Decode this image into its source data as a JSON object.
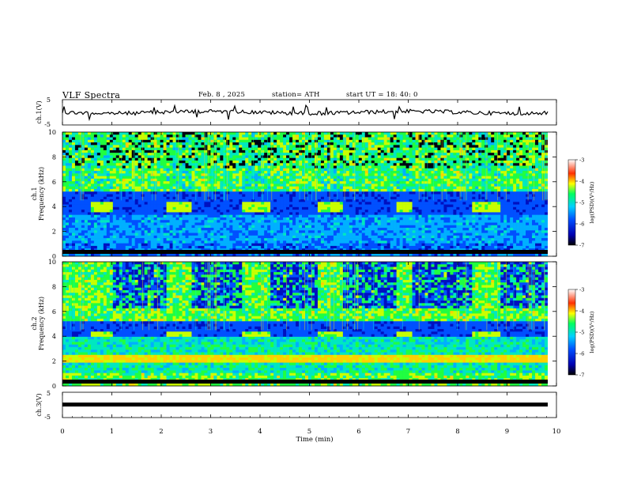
{
  "header": {
    "title": "VLF  Spectra",
    "date": "Feb. 8  , 2025",
    "station": "station= ATH",
    "start": "start  UT  =    18: 40: 0"
  },
  "chart_data": [
    {
      "type": "line",
      "name": "ch1-waveform",
      "ylabel": "ch.1(V)",
      "ylim": [
        -5,
        5
      ],
      "yticks": [
        "5",
        "-5"
      ],
      "xlim": [
        0,
        10
      ],
      "color": "#000000"
    },
    {
      "type": "heatmap",
      "name": "ch1-spectrogram",
      "ylabel": "ch.1\nFrequency  (kHz)",
      "ylabel_lines": [
        "ch.1",
        "Frequency  (kHz)"
      ],
      "ylim": [
        0,
        10
      ],
      "yticks": [
        "0",
        "2",
        "4",
        "6",
        "8",
        "10"
      ],
      "xlim": [
        0,
        10
      ],
      "colorbar": {
        "label": "log(PSD)(V²/Hz)",
        "range": [
          -7,
          -3
        ],
        "ticks": [
          "-3",
          "-4",
          "-5",
          "-6",
          "-7"
        ]
      },
      "tone_blocks_min": [
        [
          0.55,
          1.05
        ],
        [
          2.1,
          2.6
        ],
        [
          3.65,
          4.2
        ],
        [
          5.2,
          5.7
        ],
        [
          6.75,
          7.1
        ],
        [
          8.3,
          8.85
        ]
      ],
      "burst_blocks_min": [
        [
          1.05,
          2.1
        ],
        [
          2.6,
          3.65
        ],
        [
          4.2,
          5.2
        ],
        [
          5.7,
          6.75
        ],
        [
          7.1,
          8.3
        ],
        [
          8.85,
          9.8
        ]
      ]
    },
    {
      "type": "heatmap",
      "name": "ch2-spectrogram",
      "ylabel": "ch.2\nFrequency  (kHz)",
      "ylabel_lines": [
        "ch.2",
        "Frequency  (kHz)"
      ],
      "ylim": [
        0,
        10
      ],
      "yticks": [
        "0",
        "2",
        "4",
        "6",
        "8",
        "10"
      ],
      "xlim": [
        0,
        10
      ],
      "colorbar": {
        "label": "log(PSD)(V²/Hz)",
        "range": [
          -7,
          -3
        ],
        "ticks": [
          "-3",
          "-4",
          "-5",
          "-6",
          "-7"
        ]
      },
      "tone_blocks_min": [
        [
          0.55,
          1.05
        ],
        [
          2.1,
          2.6
        ],
        [
          3.65,
          4.2
        ],
        [
          5.2,
          5.7
        ],
        [
          6.75,
          7.1
        ],
        [
          8.3,
          8.85
        ]
      ],
      "burst_blocks_min": [
        [
          1.05,
          2.1
        ],
        [
          2.6,
          3.65
        ],
        [
          4.2,
          5.2
        ],
        [
          5.7,
          6.75
        ],
        [
          7.1,
          8.3
        ],
        [
          8.85,
          9.8
        ]
      ]
    },
    {
      "type": "line",
      "name": "ch3-waveform",
      "ylabel": "ch.3(V)",
      "ylim": [
        -5,
        5
      ],
      "yticks": [
        "5",
        "-5"
      ],
      "xlim": [
        0,
        10
      ],
      "xlabel": "Time  (min)",
      "xticks": [
        "0",
        "1",
        "2",
        "3",
        "4",
        "5",
        "6",
        "7",
        "8",
        "9",
        "10"
      ],
      "color": "#000000"
    }
  ]
}
